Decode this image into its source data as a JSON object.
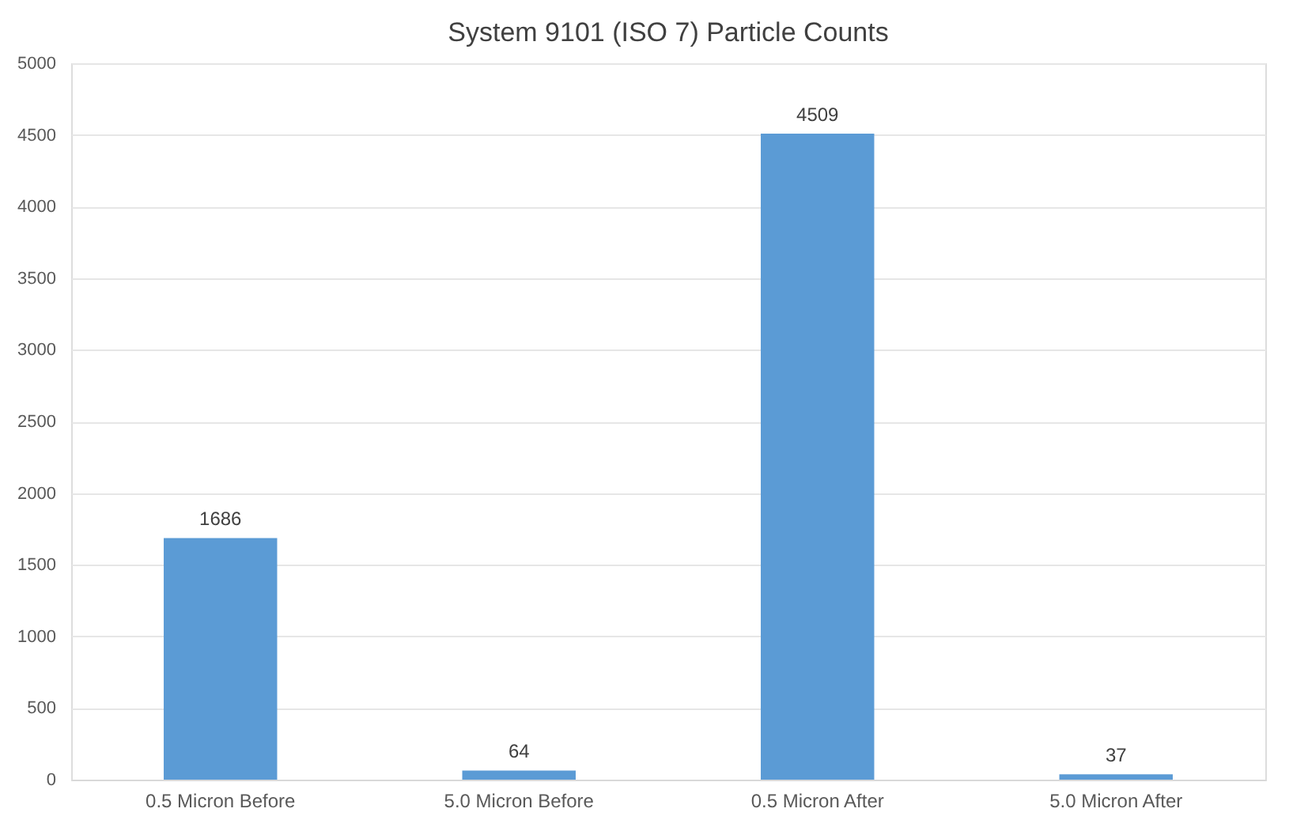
{
  "chart_data": {
    "type": "bar",
    "title": "System 9101 (ISO 7) Particle Counts",
    "categories": [
      "0.5 Micron Before",
      "5.0 Micron Before",
      "0.5 Micron After",
      "5.0 Micron After"
    ],
    "values": [
      1686,
      64,
      4509,
      37
    ],
    "color": "#5b9bd5",
    "ylim": [
      0,
      5000
    ],
    "yticks": [
      0,
      500,
      1000,
      1500,
      2000,
      2500,
      3000,
      3500,
      4000,
      4500,
      5000
    ],
    "grid": "y",
    "data_labels": true
  }
}
